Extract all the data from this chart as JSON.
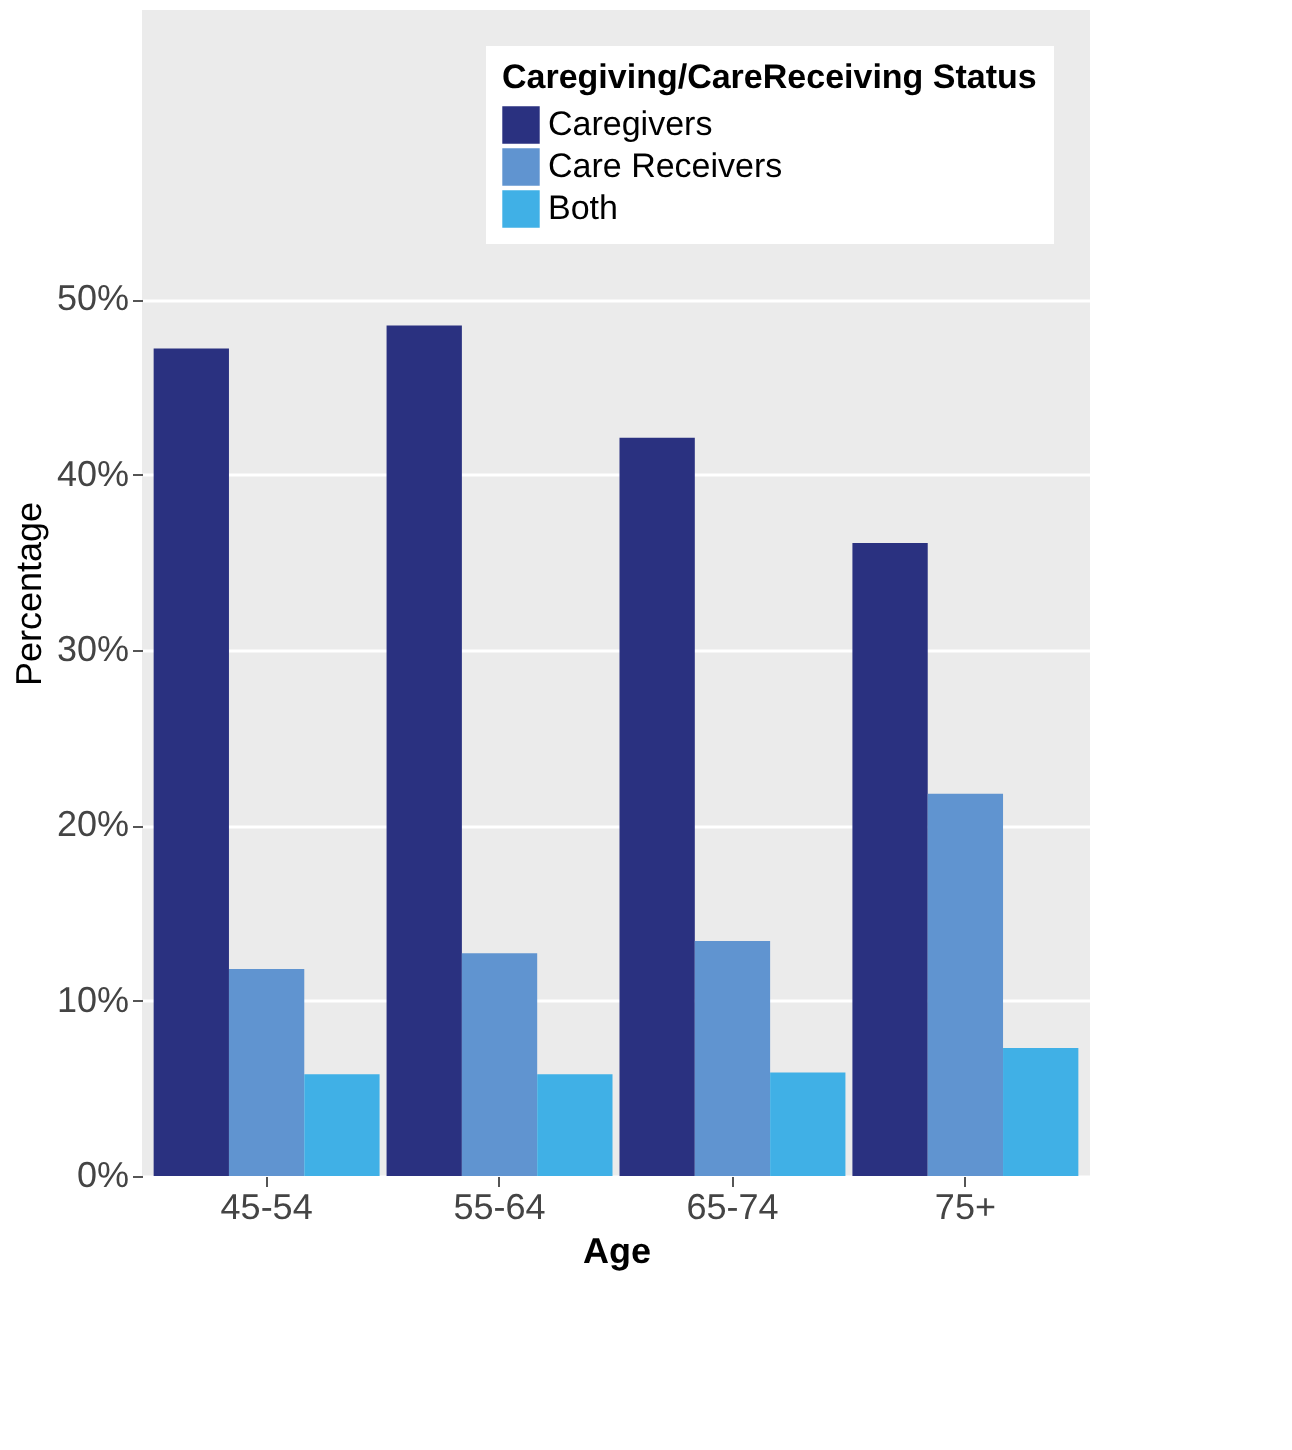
{
  "chart_data": {
    "type": "bar",
    "xlabel": "Age",
    "ylabel": "Percentage",
    "legend_title": "Caregiving/CareReceiving Status",
    "legend": "top right",
    "grid": "y",
    "categories": [
      "45-54",
      "55-64",
      "65-74",
      "75+"
    ],
    "series": [
      {
        "name": "Caregivers",
        "color": "#2a3180",
        "values": [
          47.2,
          48.5,
          42.1,
          36.1
        ]
      },
      {
        "name": "Care Receivers",
        "color": "#6094d0",
        "values": [
          11.8,
          12.7,
          13.4,
          21.8
        ]
      },
      {
        "name": "Both",
        "color": "#40b0e6",
        "values": [
          5.8,
          5.8,
          5.9,
          7.3
        ]
      }
    ],
    "ylim": [
      0,
      66.5
    ],
    "yticks": [
      {
        "value": 0,
        "label": "0%"
      },
      {
        "value": 10,
        "label": "10%"
      },
      {
        "value": 20,
        "label": "20%"
      },
      {
        "value": 30,
        "label": "30%"
      },
      {
        "value": 40,
        "label": "40%"
      },
      {
        "value": 50,
        "label": "50%"
      }
    ]
  }
}
